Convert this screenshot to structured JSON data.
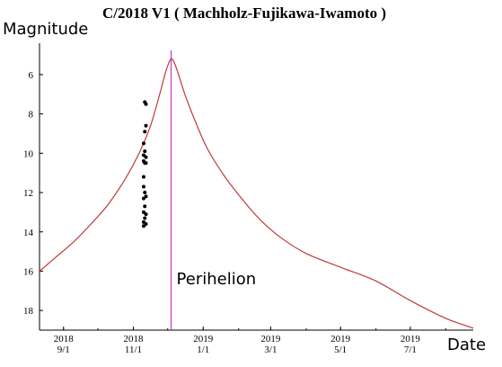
{
  "chart_data": {
    "type": "line",
    "title": "C/2018 V1 ( Machholz-Fujikawa-Iwamoto )",
    "ylabel": "Magnitude",
    "xlabel": "Date",
    "y_inverted": true,
    "ylim": [
      4.4,
      19.0
    ],
    "xlim": [
      "2018-08-11",
      "2019-08-25"
    ],
    "y_ticks": [
      6,
      8,
      10,
      12,
      14,
      16,
      18
    ],
    "x_ticks": [
      {
        "date": "2018-09-01",
        "year": "2018",
        "md": "9/1"
      },
      {
        "date": "2018-11-01",
        "year": "2018",
        "md": "11/1"
      },
      {
        "date": "2019-01-01",
        "year": "2019",
        "md": "1/1"
      },
      {
        "date": "2019-03-01",
        "year": "2019",
        "md": "3/1"
      },
      {
        "date": "2019-05-01",
        "year": "2019",
        "md": "5/1"
      },
      {
        "date": "2019-07-01",
        "year": "2019",
        "md": "7/1"
      }
    ],
    "series": [
      {
        "kind": "line",
        "color": "#c0393b",
        "points": [
          {
            "x": "2018-08-11",
            "y": 16.0
          },
          {
            "x": "2018-08-25",
            "y": 15.3
          },
          {
            "x": "2018-09-10",
            "y": 14.5
          },
          {
            "x": "2018-09-25",
            "y": 13.6
          },
          {
            "x": "2018-10-10",
            "y": 12.6
          },
          {
            "x": "2018-10-25",
            "y": 11.3
          },
          {
            "x": "2018-11-06",
            "y": 10.0
          },
          {
            "x": "2018-11-16",
            "y": 8.6
          },
          {
            "x": "2018-11-24",
            "y": 7.0
          },
          {
            "x": "2018-11-29",
            "y": 5.9
          },
          {
            "x": "2018-12-02",
            "y": 5.4
          },
          {
            "x": "2018-12-04",
            "y": 5.2
          },
          {
            "x": "2018-12-06",
            "y": 5.3
          },
          {
            "x": "2018-12-10",
            "y": 5.9
          },
          {
            "x": "2018-12-16",
            "y": 7.0
          },
          {
            "x": "2018-12-26",
            "y": 8.5
          },
          {
            "x": "2019-01-05",
            "y": 9.8
          },
          {
            "x": "2019-01-20",
            "y": 11.2
          },
          {
            "x": "2019-02-05",
            "y": 12.4
          },
          {
            "x": "2019-02-20",
            "y": 13.4
          },
          {
            "x": "2019-03-10",
            "y": 14.3
          },
          {
            "x": "2019-04-01",
            "y": 15.1
          },
          {
            "x": "2019-05-01",
            "y": 15.8
          },
          {
            "x": "2019-06-01",
            "y": 16.5
          },
          {
            "x": "2019-07-01",
            "y": 17.5
          },
          {
            "x": "2019-08-01",
            "y": 18.4
          },
          {
            "x": "2019-08-25",
            "y": 18.9
          }
        ]
      },
      {
        "kind": "scatter",
        "color": "#000000",
        "points": [
          {
            "x": "2018-11-11",
            "y": 7.4
          },
          {
            "x": "2018-11-12",
            "y": 7.5
          },
          {
            "x": "2018-11-12",
            "y": 8.6
          },
          {
            "x": "2018-11-11",
            "y": 8.9
          },
          {
            "x": "2018-11-10",
            "y": 9.5
          },
          {
            "x": "2018-11-11",
            "y": 9.9
          },
          {
            "x": "2018-11-10",
            "y": 10.1
          },
          {
            "x": "2018-11-12",
            "y": 10.2
          },
          {
            "x": "2018-11-10",
            "y": 10.4
          },
          {
            "x": "2018-11-11",
            "y": 10.5
          },
          {
            "x": "2018-11-12",
            "y": 10.5
          },
          {
            "x": "2018-11-10",
            "y": 11.2
          },
          {
            "x": "2018-11-10",
            "y": 11.7
          },
          {
            "x": "2018-11-11",
            "y": 12.0
          },
          {
            "x": "2018-11-12",
            "y": 12.2
          },
          {
            "x": "2018-11-10",
            "y": 12.3
          },
          {
            "x": "2018-11-11",
            "y": 12.7
          },
          {
            "x": "2018-11-10",
            "y": 13.0
          },
          {
            "x": "2018-11-12",
            "y": 13.1
          },
          {
            "x": "2018-11-11",
            "y": 13.3
          },
          {
            "x": "2018-11-10",
            "y": 13.5
          },
          {
            "x": "2018-11-12",
            "y": 13.6
          },
          {
            "x": "2018-11-10",
            "y": 13.7
          }
        ]
      }
    ],
    "annotations": [
      {
        "type": "vline",
        "x": "2018-12-04",
        "label": "Perihelion",
        "color": "#cc33cc"
      }
    ],
    "grid": false,
    "legend": "none"
  }
}
